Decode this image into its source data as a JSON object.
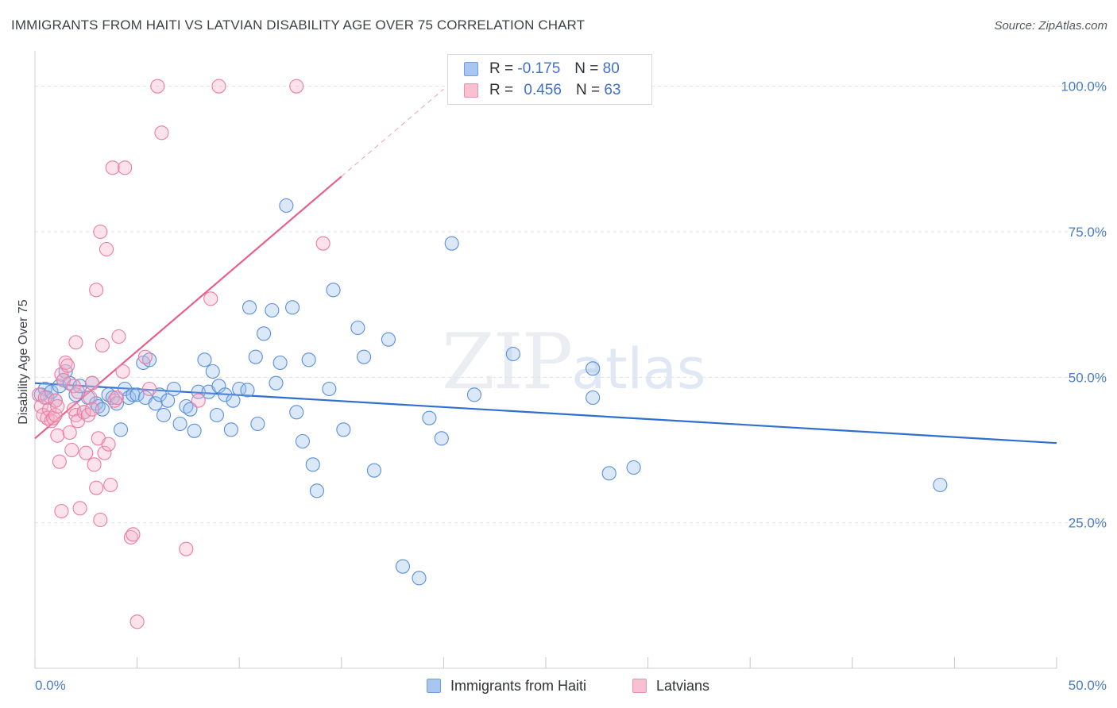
{
  "title": "IMMIGRANTS FROM HAITI VS LATVIAN DISABILITY AGE OVER 75 CORRELATION CHART",
  "source": "Source: ZipAtlas.com",
  "watermark": {
    "zip": "ZIP",
    "atlas": "atlas"
  },
  "legend": {
    "r_label": "R =",
    "n_label": "N =",
    "rows": [
      {
        "r": "-0.175",
        "n": "80",
        "color": "#a8c6f0",
        "border": "#6f9fe0"
      },
      {
        "r": "0.456",
        "n": "63",
        "color": "#f8c0d0",
        "border": "#ec90ac"
      }
    ]
  },
  "bottom_legend": [
    {
      "label": "Immigrants from Haiti",
      "color": "#a8c6f0",
      "border": "#6f9fe0"
    },
    {
      "label": "Latvians",
      "color": "#f8c0d0",
      "border": "#ec90ac"
    }
  ],
  "chart_data": {
    "type": "scatter",
    "ylabel": "Disability Age Over 75",
    "xlabel": "",
    "xlim": [
      0,
      50
    ],
    "ylim": [
      0,
      105
    ],
    "x_tick_labels": [
      {
        "value": 0,
        "label": "0.0%"
      },
      {
        "value": 50,
        "label": "50.0%"
      }
    ],
    "y_tick_labels": [
      {
        "value": 25,
        "label": "25.0%"
      },
      {
        "value": 50,
        "label": "50.0%"
      },
      {
        "value": 75,
        "label": "75.0%"
      },
      {
        "value": 100,
        "label": "100.0%"
      }
    ],
    "grid": true,
    "series": [
      {
        "name": "Immigrants from Haiti",
        "color": "#5b8fdc",
        "fill": "rgba(150,188,236,0.35)",
        "trend": {
          "x0": 0,
          "y0": 49.0,
          "x1": 50,
          "y1": 38.7,
          "color": "#2f6fd0"
        },
        "points": [
          [
            0.3,
            47.0
          ],
          [
            0.5,
            48.0
          ],
          [
            0.6,
            46.5
          ],
          [
            0.8,
            47.5
          ],
          [
            1.0,
            46.0
          ],
          [
            1.2,
            48.5
          ],
          [
            1.4,
            49.5
          ],
          [
            1.5,
            51.0
          ],
          [
            1.7,
            49.0
          ],
          [
            2.0,
            47.0
          ],
          [
            2.2,
            48.5
          ],
          [
            2.4,
            44.0
          ],
          [
            2.6,
            46.5
          ],
          [
            2.8,
            49.0
          ],
          [
            3.0,
            45.5
          ],
          [
            3.1,
            45.0
          ],
          [
            3.3,
            44.5
          ],
          [
            3.6,
            47.0
          ],
          [
            3.8,
            46.5
          ],
          [
            4.0,
            45.5
          ],
          [
            4.2,
            41.0
          ],
          [
            4.4,
            48.0
          ],
          [
            4.6,
            46.5
          ],
          [
            4.8,
            47.0
          ],
          [
            5.0,
            47.0
          ],
          [
            5.3,
            52.5
          ],
          [
            5.4,
            46.5
          ],
          [
            5.6,
            53.0
          ],
          [
            5.9,
            45.5
          ],
          [
            6.1,
            47.0
          ],
          [
            6.3,
            43.5
          ],
          [
            6.5,
            46.0
          ],
          [
            6.8,
            48.0
          ],
          [
            7.1,
            42.0
          ],
          [
            7.4,
            45.0
          ],
          [
            7.6,
            44.5
          ],
          [
            7.8,
            40.8
          ],
          [
            8.0,
            47.5
          ],
          [
            8.3,
            53.0
          ],
          [
            8.5,
            47.5
          ],
          [
            8.7,
            51.0
          ],
          [
            8.9,
            43.5
          ],
          [
            9.0,
            48.5
          ],
          [
            9.3,
            47.0
          ],
          [
            9.6,
            41.0
          ],
          [
            9.7,
            46.0
          ],
          [
            10.0,
            48.0
          ],
          [
            10.4,
            47.8
          ],
          [
            10.5,
            62.0
          ],
          [
            10.8,
            53.5
          ],
          [
            10.9,
            42.0
          ],
          [
            11.2,
            57.5
          ],
          [
            11.6,
            61.5
          ],
          [
            11.8,
            49.0
          ],
          [
            12.0,
            52.5
          ],
          [
            12.3,
            79.5
          ],
          [
            12.6,
            62.0
          ],
          [
            12.8,
            44.0
          ],
          [
            13.1,
            39.0
          ],
          [
            13.4,
            53.0
          ],
          [
            13.6,
            35.0
          ],
          [
            13.8,
            30.5
          ],
          [
            14.4,
            48.0
          ],
          [
            14.6,
            65.0
          ],
          [
            15.1,
            41.0
          ],
          [
            15.8,
            58.5
          ],
          [
            16.1,
            53.5
          ],
          [
            16.6,
            34.0
          ],
          [
            17.3,
            56.5
          ],
          [
            18.0,
            17.5
          ],
          [
            18.8,
            15.5
          ],
          [
            19.3,
            43.0
          ],
          [
            19.9,
            39.5
          ],
          [
            20.4,
            73.0
          ],
          [
            21.5,
            47.0
          ],
          [
            23.4,
            54.0
          ],
          [
            27.3,
            51.5
          ],
          [
            27.3,
            46.5
          ],
          [
            28.1,
            33.5
          ],
          [
            29.3,
            34.5
          ],
          [
            44.3,
            31.5
          ]
        ]
      },
      {
        "name": "Latvians",
        "color": "#ec7ca0",
        "fill": "rgba(246,176,198,0.35)",
        "trend": {
          "x0": 0,
          "y0": 39.5,
          "x1": 15,
          "y1": 84.5,
          "x2": 20,
          "y2": 99.5,
          "color": "#e8608a"
        },
        "points": [
          [
            0.2,
            47.0
          ],
          [
            0.3,
            45.0
          ],
          [
            0.4,
            43.5
          ],
          [
            0.5,
            46.5
          ],
          [
            0.6,
            43.0
          ],
          [
            0.7,
            44.5
          ],
          [
            0.8,
            42.5
          ],
          [
            0.9,
            43.0
          ],
          [
            1.0,
            43.5
          ],
          [
            1.0,
            46.0
          ],
          [
            1.1,
            45.0
          ],
          [
            1.1,
            40.0
          ],
          [
            1.2,
            35.5
          ],
          [
            1.3,
            50.5
          ],
          [
            1.3,
            27.0
          ],
          [
            1.4,
            49.5
          ],
          [
            1.5,
            52.5
          ],
          [
            1.6,
            52.0
          ],
          [
            1.7,
            40.5
          ],
          [
            1.8,
            37.5
          ],
          [
            1.9,
            48.5
          ],
          [
            1.9,
            44.5
          ],
          [
            2.0,
            56.0
          ],
          [
            2.0,
            43.5
          ],
          [
            2.1,
            42.5
          ],
          [
            2.1,
            47.5
          ],
          [
            2.2,
            27.5
          ],
          [
            2.4,
            44.0
          ],
          [
            2.5,
            37.0
          ],
          [
            2.6,
            43.5
          ],
          [
            2.7,
            46.5
          ],
          [
            2.8,
            49.0
          ],
          [
            2.8,
            44.5
          ],
          [
            2.9,
            35.0
          ],
          [
            3.0,
            65.0
          ],
          [
            3.0,
            31.0
          ],
          [
            3.1,
            39.5
          ],
          [
            3.2,
            25.5
          ],
          [
            3.2,
            75.0
          ],
          [
            3.3,
            55.5
          ],
          [
            3.4,
            37.0
          ],
          [
            3.5,
            72.0
          ],
          [
            3.6,
            38.5
          ],
          [
            3.7,
            31.5
          ],
          [
            3.8,
            86.0
          ],
          [
            3.9,
            46.0
          ],
          [
            4.0,
            46.5
          ],
          [
            4.1,
            57.0
          ],
          [
            4.3,
            51.0
          ],
          [
            4.4,
            86.0
          ],
          [
            4.7,
            22.5
          ],
          [
            4.8,
            23.0
          ],
          [
            5.0,
            8.0
          ],
          [
            5.4,
            53.5
          ],
          [
            5.6,
            48.0
          ],
          [
            6.0,
            100.0
          ],
          [
            6.2,
            92.0
          ],
          [
            7.4,
            20.5
          ],
          [
            8.0,
            46.0
          ],
          [
            8.6,
            63.5
          ],
          [
            9.0,
            100.0
          ],
          [
            12.8,
            100.0
          ],
          [
            14.1,
            73.0
          ]
        ]
      }
    ]
  }
}
